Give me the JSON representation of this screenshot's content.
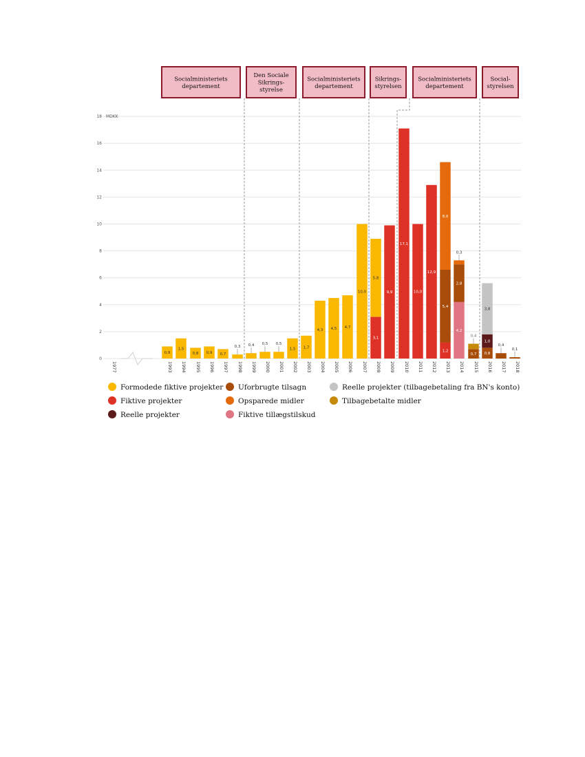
{
  "chart_data": {
    "type": "bar",
    "stacked": true,
    "unit_label": "MDKK",
    "ylim": [
      0,
      18
    ],
    "yticks": [
      0,
      2,
      4,
      6,
      8,
      10,
      12,
      14,
      16,
      18
    ],
    "grid": true,
    "legend_position": "bottom",
    "categories": [
      "1977",
      "1993",
      "1994",
      "1995",
      "1996",
      "1997",
      "1998",
      "1999",
      "2000",
      "2001",
      "2002",
      "2003",
      "2004",
      "2005",
      "2006",
      "2007",
      "2008",
      "2009",
      "2010",
      "2011",
      "2012",
      "2013",
      "2014",
      "2015",
      "2016",
      "2017",
      "2018"
    ],
    "series": [
      {
        "key": "formodede",
        "name": "Formodede fiktive projekter",
        "color": "#fbb800",
        "values": [
          0,
          0.9,
          1.5,
          0.8,
          0.9,
          0.7,
          0.3,
          0.4,
          0.5,
          0.5,
          1.5,
          1.7,
          4.3,
          4.5,
          4.7,
          10.0,
          5.8,
          0,
          0,
          0,
          0,
          0,
          0,
          0,
          0,
          0,
          0
        ]
      },
      {
        "key": "fiktive",
        "name": "Fiktive projekter",
        "color": "#df3226",
        "values": [
          0,
          0,
          0,
          0,
          0,
          0,
          0,
          0,
          0,
          0,
          0,
          0,
          0,
          0,
          0,
          0,
          3.1,
          9.9,
          17.1,
          10.0,
          12.9,
          1.2,
          0,
          0,
          0,
          0,
          0
        ]
      },
      {
        "key": "reelle",
        "name": "Reelle projekter",
        "color": "#5c1a1a",
        "values": [
          0,
          0,
          0,
          0,
          0,
          0,
          0,
          0,
          0,
          0,
          0,
          0,
          0,
          0,
          0,
          0,
          0,
          0,
          0,
          0,
          0,
          0,
          0,
          0,
          1.0,
          0,
          0
        ]
      },
      {
        "key": "uforbrugte",
        "name": "Uforbrugte tilsagn",
        "color": "#a84c0a",
        "values": [
          0,
          0,
          0,
          0,
          0,
          0,
          0,
          0,
          0,
          0,
          0,
          0,
          0,
          0,
          0,
          0,
          0,
          0,
          0,
          0,
          0,
          5.4,
          2.8,
          0.7,
          0.8,
          0.4,
          0.1
        ]
      },
      {
        "key": "opsparede",
        "name": "Opsparede midler",
        "color": "#e46a0c",
        "values": [
          0,
          0,
          0,
          0,
          0,
          0,
          0,
          0,
          0,
          0,
          0,
          0,
          0,
          0,
          0,
          0,
          0,
          0,
          0,
          0,
          0,
          8.0,
          0.3,
          0,
          0,
          0,
          0
        ]
      },
      {
        "key": "fiktive_tillaeg",
        "name": "Fiktive tillægstilskud",
        "color": "#e07583",
        "values": [
          0,
          0,
          0,
          0,
          0,
          0,
          0,
          0,
          0,
          0,
          0,
          0,
          0,
          0,
          0,
          0,
          0,
          0,
          0,
          0,
          0,
          0,
          4.2,
          0,
          0,
          0,
          0
        ]
      },
      {
        "key": "reelle_bn",
        "name": "Reelle projekter (tilbagebetaling fra BN's konto)",
        "color": "#c4c4c4",
        "values": [
          0,
          0,
          0,
          0,
          0,
          0,
          0,
          0,
          0,
          0,
          0,
          0,
          0,
          0,
          0,
          0,
          0,
          0,
          0,
          0,
          0,
          0,
          0,
          0,
          3.8,
          0,
          0
        ]
      },
      {
        "key": "tilbagebetalte",
        "name": "Tilbagebetalte midler",
        "color": "#c58a0c",
        "values": [
          0,
          0,
          0,
          0,
          0,
          0,
          0,
          0,
          0,
          0,
          0,
          0,
          0,
          0,
          0,
          0,
          0,
          0,
          0,
          0,
          0,
          0,
          0,
          0.4,
          0,
          0,
          0
        ]
      }
    ],
    "stack_order": [
      [
        "formodede"
      ],
      [
        "formodede"
      ],
      [
        "formodede"
      ],
      [
        "formodede"
      ],
      [
        "formodede"
      ],
      [
        "formodede"
      ],
      [
        "formodede"
      ],
      [
        "formodede"
      ],
      [
        "formodede"
      ],
      [
        "formodede"
      ],
      [
        "formodede"
      ],
      [
        "formodede"
      ],
      [
        "formodede"
      ],
      [
        "formodede"
      ],
      [
        "formodede"
      ],
      [
        "formodede"
      ],
      [
        "fiktive",
        "formodede"
      ],
      [
        "fiktive"
      ],
      [
        "fiktive"
      ],
      [
        "fiktive"
      ],
      [
        "fiktive"
      ],
      [
        "fiktive",
        "uforbrugte",
        "opsparede"
      ],
      [
        "fiktive_tillaeg",
        "uforbrugte",
        "opsparede"
      ],
      [
        "uforbrugte",
        "tilbagebetalte"
      ],
      [
        "uforbrugte",
        "reelle",
        "reelle_bn"
      ],
      [
        "uforbrugte"
      ],
      [
        "uforbrugte"
      ]
    ],
    "labels": [
      {
        "cat": "1993",
        "text": "0,9",
        "mode": "in"
      },
      {
        "cat": "1994",
        "text": "1,5",
        "mode": "in"
      },
      {
        "cat": "1995",
        "text": "0,8",
        "mode": "in"
      },
      {
        "cat": "1996",
        "text": "0,9",
        "mode": "in"
      },
      {
        "cat": "1997",
        "text": "0,7",
        "mode": "in"
      },
      {
        "cat": "1998",
        "text": "0,3",
        "mode": "above"
      },
      {
        "cat": "1999",
        "text": "0,4",
        "mode": "above"
      },
      {
        "cat": "2000",
        "text": "0,5",
        "mode": "above"
      },
      {
        "cat": "2001",
        "text": "0,5",
        "mode": "above"
      },
      {
        "cat": "2002",
        "text": "1,5",
        "mode": "in"
      },
      {
        "cat": "2003",
        "text": "1,7",
        "mode": "in"
      },
      {
        "cat": "2004",
        "text": "4,3",
        "mode": "in"
      },
      {
        "cat": "2005",
        "text": "4,5",
        "mode": "in"
      },
      {
        "cat": "2006",
        "text": "4,7",
        "mode": "in"
      },
      {
        "cat": "2007",
        "text": "10,0",
        "mode": "in"
      },
      {
        "cat": "2008",
        "series": "fiktive",
        "text": "3,1",
        "mode": "in",
        "color": "#ffffff"
      },
      {
        "cat": "2008",
        "series": "formodede",
        "text": "5,8",
        "mode": "in"
      },
      {
        "cat": "2009",
        "text": "9,9",
        "mode": "in",
        "color": "#ffffff"
      },
      {
        "cat": "2010",
        "text": "17,1",
        "mode": "in",
        "color": "#ffffff"
      },
      {
        "cat": "2011",
        "text": "10,0",
        "mode": "in",
        "color": "#ffffff"
      },
      {
        "cat": "2012",
        "text": "12,9",
        "mode": "in",
        "color": "#ffffff"
      },
      {
        "cat": "2013",
        "series": "fiktive",
        "text": "1,2",
        "mode": "in",
        "color": "#ffffff"
      },
      {
        "cat": "2013",
        "series": "uforbrugte",
        "text": "5,4",
        "mode": "in",
        "color": "#ffffff"
      },
      {
        "cat": "2013",
        "series": "opsparede",
        "text": "8,0",
        "mode": "in",
        "color": "#ffffff"
      },
      {
        "cat": "2014",
        "series": "fiktive_tillaeg",
        "text": "4,2",
        "mode": "in",
        "color": "#ffffff"
      },
      {
        "cat": "2014",
        "series": "uforbrugte",
        "text": "2,8",
        "mode": "in",
        "color": "#ffffff"
      },
      {
        "cat": "2014",
        "series": "opsparede",
        "text": "0,3",
        "mode": "above"
      },
      {
        "cat": "2015",
        "series": "uforbrugte",
        "text": "0,7",
        "mode": "in",
        "color": "#ffffff"
      },
      {
        "cat": "2015",
        "series": "tilbagebetalte",
        "text": "0,4",
        "mode": "above",
        "color": "#666666"
      },
      {
        "cat": "2016",
        "series": "uforbrugte",
        "text": "0,8",
        "mode": "in",
        "color": "#ffffff"
      },
      {
        "cat": "2016",
        "series": "reelle",
        "text": "1,0",
        "mode": "in",
        "color": "#ffffff"
      },
      {
        "cat": "2016",
        "series": "reelle_bn",
        "text": "3,8",
        "mode": "in"
      },
      {
        "cat": "2017",
        "text": "0,4",
        "mode": "above"
      },
      {
        "cat": "2018",
        "text": "0,1",
        "mode": "above"
      }
    ],
    "ministries": [
      {
        "lines": [
          "Socialministeriets",
          "departement"
        ]
      },
      {
        "lines": [
          "Den Sociale",
          "Sikrings-",
          "styrelse"
        ]
      },
      {
        "lines": [
          "Socialministeriets",
          "departement"
        ]
      },
      {
        "lines": [
          "Sikrings-",
          "styrelsen"
        ]
      },
      {
        "lines": [
          "Socialministeriets",
          "departement"
        ]
      },
      {
        "lines": [
          "Social-",
          "styrelsen"
        ]
      }
    ],
    "legend_order": [
      "formodede",
      "uforbrugte",
      "reelle_bn",
      "fiktive",
      "opsparede",
      "tilbagebetalte",
      "reelle",
      "fiktive_tillaeg"
    ]
  }
}
